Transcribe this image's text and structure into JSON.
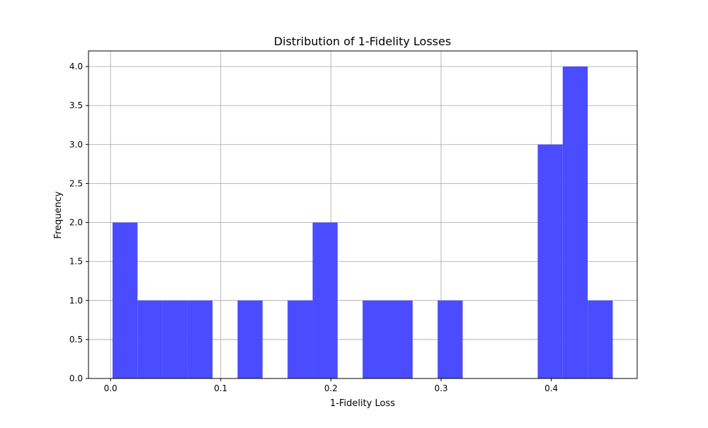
{
  "chart_data": {
    "type": "bar",
    "title": "Distribution of 1-Fidelity Losses",
    "xlabel": "1-Fidelity Loss",
    "ylabel": "Frequency",
    "bins": [
      {
        "start": 0.0018,
        "end": 0.0245,
        "count": 2
      },
      {
        "start": 0.0245,
        "end": 0.0472,
        "count": 1
      },
      {
        "start": 0.0472,
        "end": 0.0699,
        "count": 1
      },
      {
        "start": 0.0699,
        "end": 0.0926,
        "count": 1
      },
      {
        "start": 0.0926,
        "end": 0.1153,
        "count": 0
      },
      {
        "start": 0.1153,
        "end": 0.138,
        "count": 1
      },
      {
        "start": 0.138,
        "end": 0.1607,
        "count": 0
      },
      {
        "start": 0.1607,
        "end": 0.1834,
        "count": 1
      },
      {
        "start": 0.1834,
        "end": 0.2061,
        "count": 2
      },
      {
        "start": 0.2061,
        "end": 0.2288,
        "count": 0
      },
      {
        "start": 0.2288,
        "end": 0.2515,
        "count": 1
      },
      {
        "start": 0.2515,
        "end": 0.2742,
        "count": 1
      },
      {
        "start": 0.2742,
        "end": 0.2969,
        "count": 0
      },
      {
        "start": 0.2969,
        "end": 0.3196,
        "count": 1
      },
      {
        "start": 0.3196,
        "end": 0.3423,
        "count": 0
      },
      {
        "start": 0.3423,
        "end": 0.365,
        "count": 0
      },
      {
        "start": 0.365,
        "end": 0.3877,
        "count": 0
      },
      {
        "start": 0.3877,
        "end": 0.4104,
        "count": 3
      },
      {
        "start": 0.4104,
        "end": 0.4331,
        "count": 4
      },
      {
        "start": 0.4331,
        "end": 0.4558,
        "count": 1
      }
    ],
    "xlim": [
      -0.02,
      0.478
    ],
    "ylim": [
      0,
      4.2
    ],
    "xticks": [
      0.0,
      0.1,
      0.2,
      0.3,
      0.4
    ],
    "xtick_labels": [
      "0.0",
      "0.1",
      "0.2",
      "0.3",
      "0.4"
    ],
    "yticks": [
      0.0,
      0.5,
      1.0,
      1.5,
      2.0,
      2.5,
      3.0,
      3.5,
      4.0
    ],
    "ytick_labels": [
      "0.0",
      "0.5",
      "1.0",
      "1.5",
      "2.0",
      "2.5",
      "3.0",
      "3.5",
      "4.0"
    ],
    "grid": true,
    "bar_color": "#4b4bff",
    "grid_color": "#b0b0b0"
  }
}
